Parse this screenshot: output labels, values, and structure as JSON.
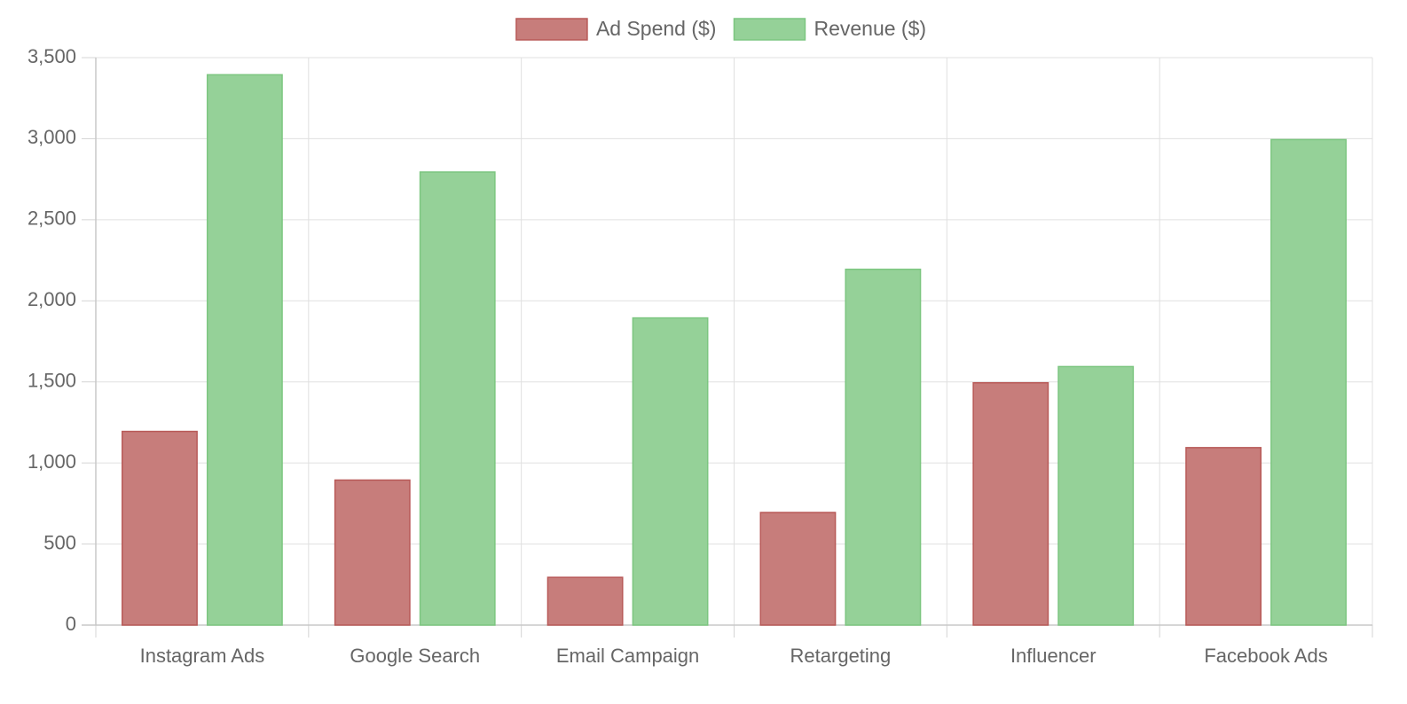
{
  "chart_data": {
    "type": "bar",
    "title": "",
    "xlabel": "",
    "ylabel": "",
    "categories": [
      "Instagram Ads",
      "Google Search",
      "Email Campaign",
      "Retargeting",
      "Influencer",
      "Facebook Ads"
    ],
    "series": [
      {
        "name": "Ad Spend ($)",
        "values": [
          1200,
          900,
          300,
          700,
          1500,
          1100
        ],
        "fill": "#c77d7b",
        "stroke": "#b85a58"
      },
      {
        "name": "Revenue ($)",
        "values": [
          3400,
          2800,
          1900,
          2200,
          1600,
          3000
        ],
        "fill": "#95d198",
        "stroke": "#7cc680"
      }
    ],
    "ylim": [
      0,
      3500
    ],
    "yticks": [
      0,
      500,
      1000,
      1500,
      2000,
      2500,
      3000,
      3500
    ],
    "ytick_labels": [
      "0",
      "500",
      "1,000",
      "1,500",
      "2,000",
      "2,500",
      "3,000",
      "3,500"
    ],
    "grid": true,
    "legend_position": "top"
  }
}
